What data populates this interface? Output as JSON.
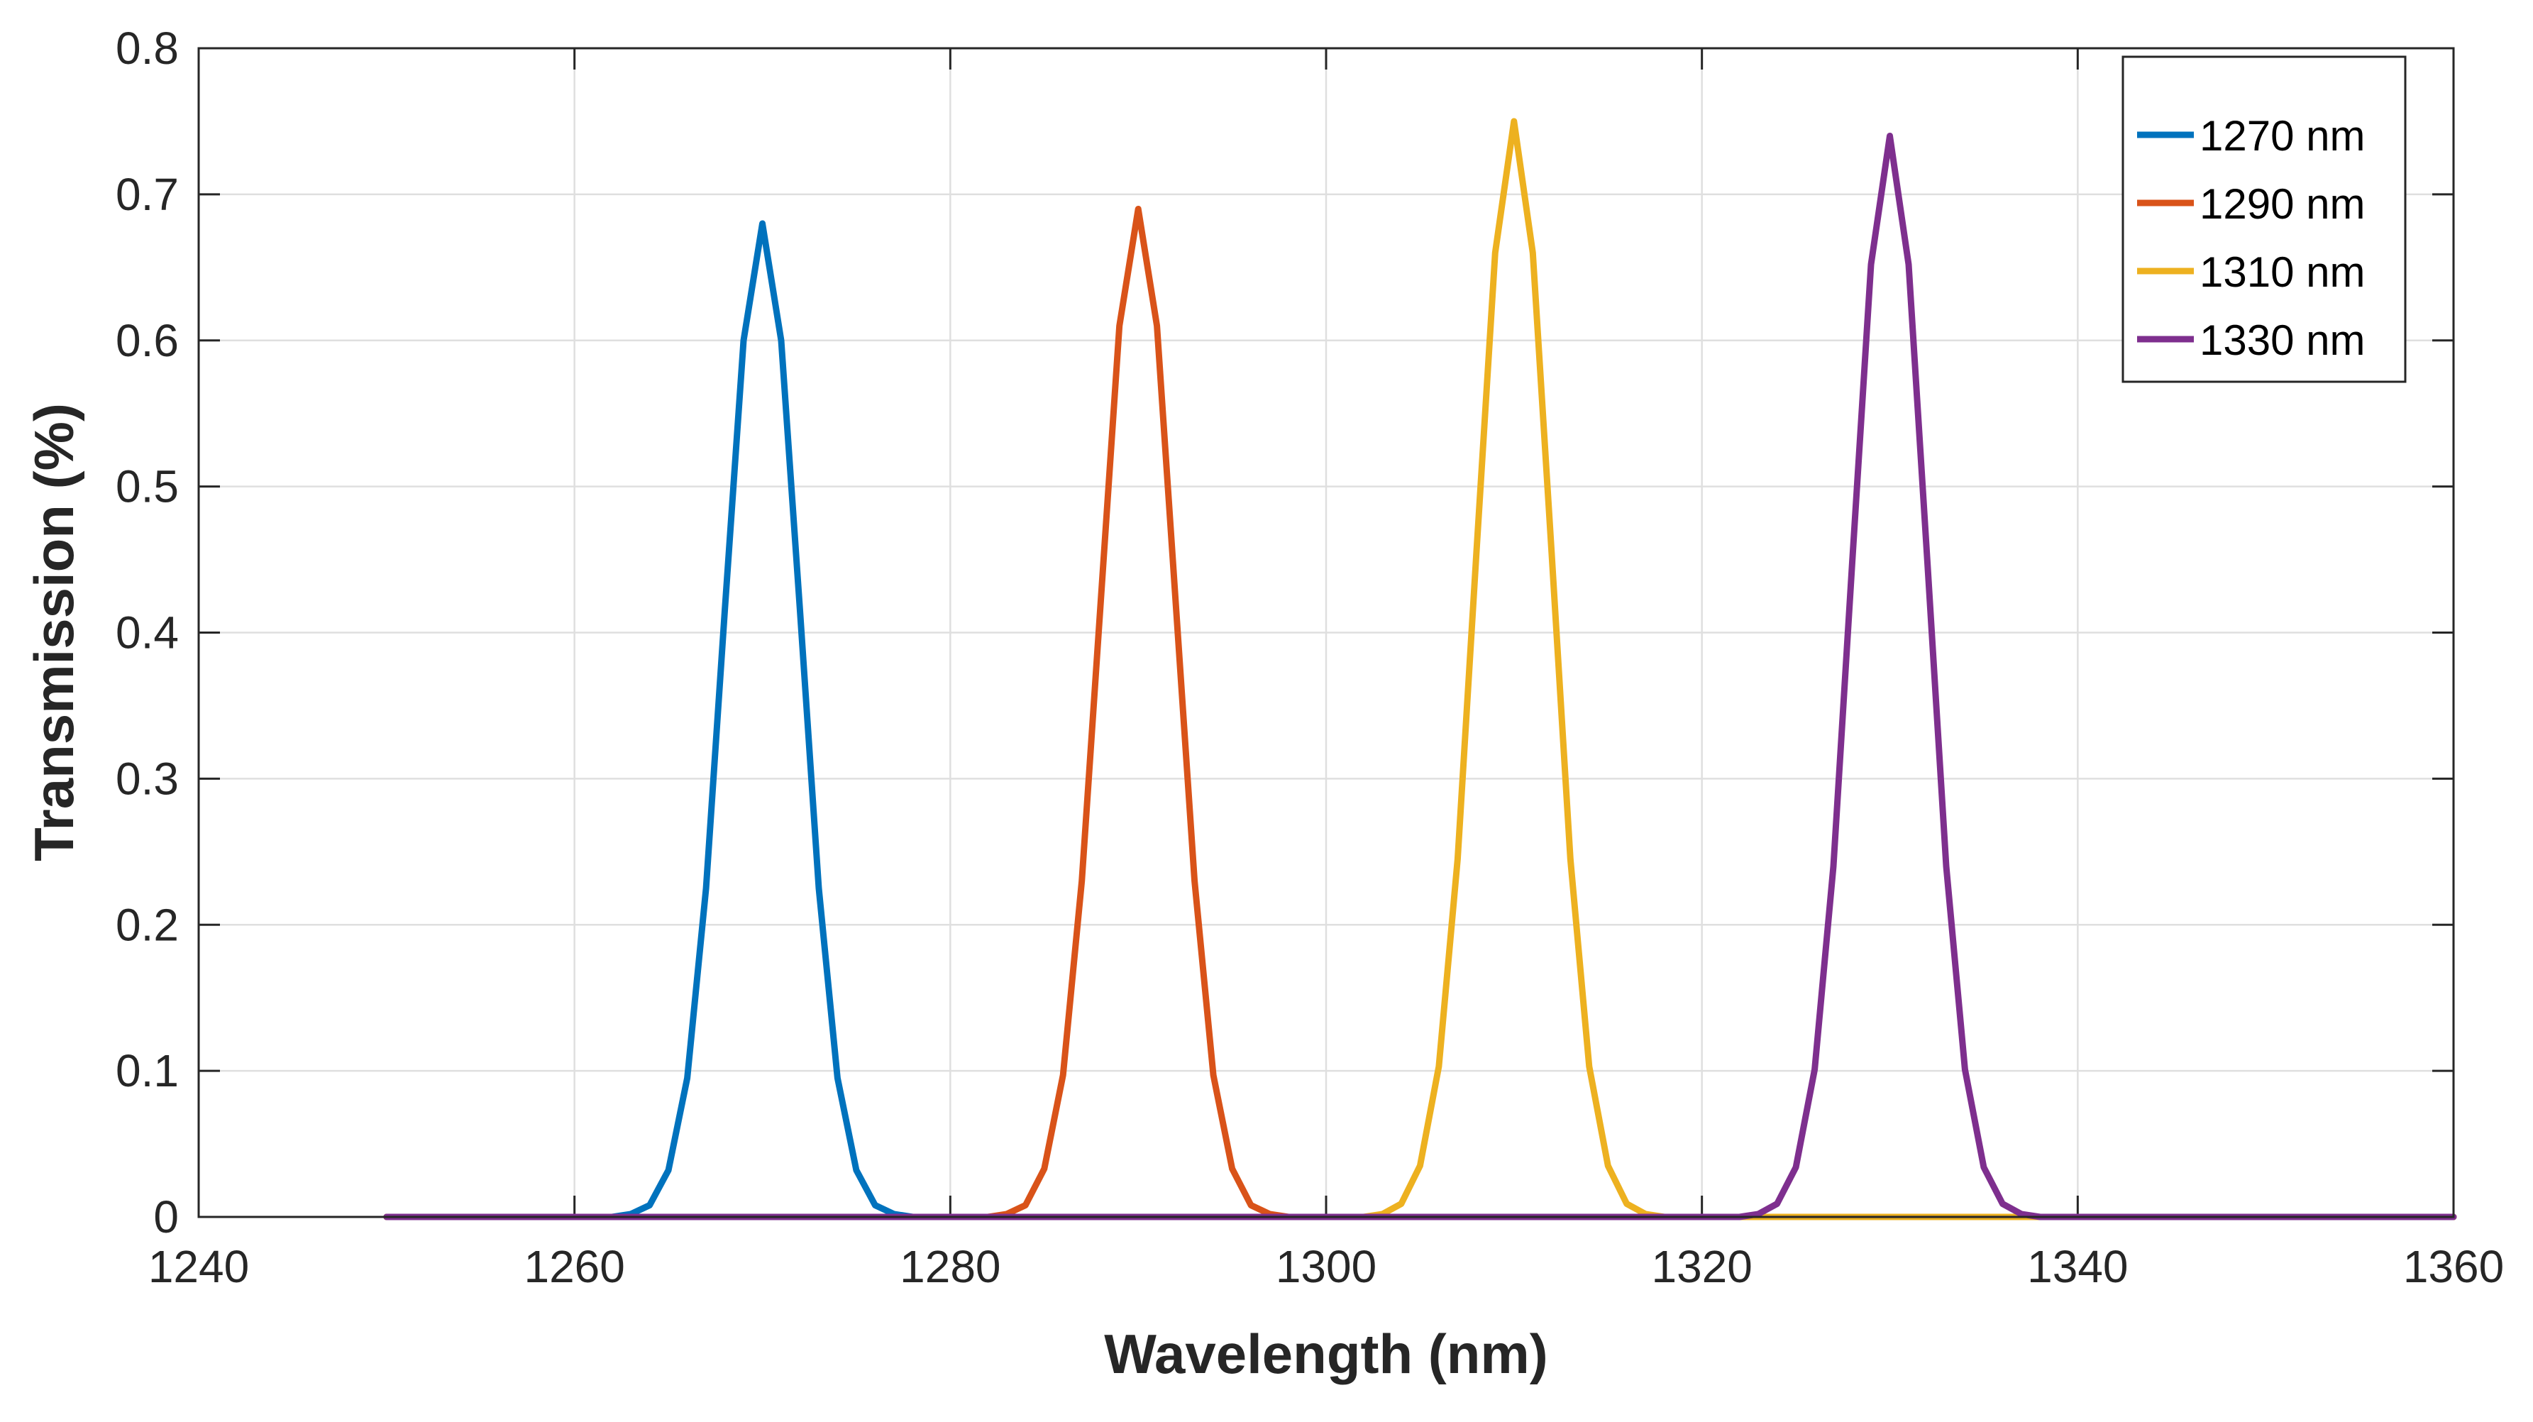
{
  "chart_data": {
    "type": "line",
    "title": "",
    "xlabel": "Wavelength (nm)",
    "ylabel": "Transmission (%)",
    "xlim": [
      1240,
      1360
    ],
    "ylim": [
      0,
      0.8
    ],
    "xticks": [
      1240,
      1260,
      1280,
      1300,
      1320,
      1340,
      1360
    ],
    "xtick_labels": [
      "1240",
      "1260",
      "1280",
      "1300",
      "1320",
      "1340",
      "1360"
    ],
    "yticks": [
      0,
      0.1,
      0.2,
      0.3,
      0.4,
      0.5,
      0.6,
      0.7,
      0.8
    ],
    "ytick_labels": [
      "0",
      "0.1",
      "0.2",
      "0.3",
      "0.4",
      "0.5",
      "0.6",
      "0.7",
      "0.8"
    ],
    "grid": true,
    "legend_position": "top-right",
    "x": [
      1250,
      1262,
      1263,
      1264,
      1265,
      1266,
      1267,
      1268,
      1269,
      1270,
      1271,
      1272,
      1273,
      1274,
      1275,
      1276,
      1277,
      1278,
      1282,
      1283,
      1284,
      1285,
      1286,
      1287,
      1288,
      1289,
      1290,
      1291,
      1292,
      1293,
      1294,
      1295,
      1296,
      1297,
      1298,
      1302,
      1303,
      1304,
      1305,
      1306,
      1307,
      1308,
      1309,
      1310,
      1311,
      1312,
      1313,
      1314,
      1315,
      1316,
      1317,
      1318,
      1322,
      1323,
      1324,
      1325,
      1326,
      1327,
      1328,
      1329,
      1330,
      1331,
      1332,
      1333,
      1334,
      1335,
      1336,
      1337,
      1338,
      1360
    ],
    "series": [
      {
        "name": "1270 nm",
        "color": "#0072BD",
        "values": [
          0,
          0,
          0.002,
          0.008,
          0.032,
          0.095,
          0.225,
          0.415,
          0.6,
          0.68,
          0.6,
          0.415,
          0.225,
          0.095,
          0.032,
          0.008,
          0.002,
          0,
          0,
          0,
          0,
          0,
          0,
          0,
          0,
          0,
          0,
          0,
          0,
          0,
          0,
          0,
          0,
          0,
          0,
          0,
          0,
          0,
          0,
          0,
          0,
          0,
          0,
          0,
          0,
          0,
          0,
          0,
          0,
          0,
          0,
          0,
          0,
          0,
          0,
          0,
          0,
          0,
          0,
          0,
          0,
          0,
          0,
          0,
          0,
          0,
          0,
          0,
          0,
          0
        ]
      },
      {
        "name": "1290 nm",
        "color": "#D95319",
        "values": [
          0,
          0,
          0,
          0,
          0,
          0,
          0,
          0,
          0,
          0,
          0,
          0,
          0,
          0,
          0,
          0,
          0,
          0,
          0,
          0.002,
          0.008,
          0.033,
          0.097,
          0.23,
          0.42,
          0.61,
          0.69,
          0.61,
          0.42,
          0.23,
          0.097,
          0.033,
          0.008,
          0.002,
          0,
          0,
          0,
          0,
          0,
          0,
          0,
          0,
          0,
          0,
          0,
          0,
          0,
          0,
          0,
          0,
          0,
          0,
          0,
          0,
          0,
          0,
          0,
          0,
          0,
          0,
          0,
          0,
          0,
          0,
          0,
          0,
          0,
          0,
          0,
          0
        ]
      },
      {
        "name": "1310 nm",
        "color": "#EDB120",
        "values": [
          0,
          0,
          0,
          0,
          0,
          0,
          0,
          0,
          0,
          0,
          0,
          0,
          0,
          0,
          0,
          0,
          0,
          0,
          0,
          0,
          0,
          0,
          0,
          0,
          0,
          0,
          0,
          0,
          0,
          0,
          0,
          0,
          0,
          0,
          0,
          0,
          0.002,
          0.009,
          0.035,
          0.103,
          0.245,
          0.455,
          0.66,
          0.75,
          0.66,
          0.455,
          0.245,
          0.103,
          0.035,
          0.009,
          0.002,
          0,
          0,
          0,
          0,
          0,
          0,
          0,
          0,
          0,
          0,
          0,
          0,
          0,
          0,
          0,
          0,
          0,
          0,
          0
        ]
      },
      {
        "name": "1330 nm",
        "color": "#7E2F8E",
        "values": [
          0,
          0,
          0,
          0,
          0,
          0,
          0,
          0,
          0,
          0,
          0,
          0,
          0,
          0,
          0,
          0,
          0,
          0,
          0,
          0,
          0,
          0,
          0,
          0,
          0,
          0,
          0,
          0,
          0,
          0,
          0,
          0,
          0,
          0,
          0,
          0,
          0,
          0,
          0,
          0,
          0,
          0,
          0,
          0,
          0,
          0,
          0,
          0,
          0,
          0,
          0,
          0,
          0,
          0.002,
          0.009,
          0.034,
          0.101,
          0.24,
          0.448,
          0.652,
          0.74,
          0.652,
          0.448,
          0.24,
          0.101,
          0.034,
          0.009,
          0.002,
          0,
          0
        ]
      }
    ]
  }
}
